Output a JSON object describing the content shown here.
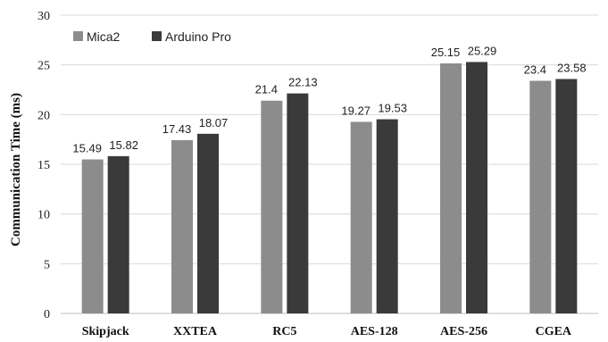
{
  "chart_data": {
    "type": "bar",
    "categories": [
      "Skipjack",
      "XXTEA",
      "RC5",
      "AES-128",
      "AES-256",
      "CGEA"
    ],
    "series": [
      {
        "name": "Mica2",
        "values": [
          15.49,
          17.43,
          21.4,
          19.27,
          25.15,
          23.4
        ],
        "labels": [
          "15.49",
          "17.43",
          "21.4",
          "19.27",
          "25.15",
          "23.4"
        ],
        "color": "#8c8c8c"
      },
      {
        "name": "Arduino Pro",
        "values": [
          15.82,
          18.07,
          22.13,
          19.53,
          25.29,
          23.58
        ],
        "labels": [
          "15.82",
          "18.07",
          "22.13",
          "19.53",
          "25.29",
          "23.58"
        ],
        "color": "#3a3a3a"
      }
    ],
    "ylabel": "Communication Time (ms)",
    "xlabel": "",
    "ylim": [
      0,
      30
    ],
    "yticks": [
      "0",
      "5",
      "10",
      "15",
      "20",
      "25",
      "30"
    ],
    "grid": true,
    "legend": "top-left"
  }
}
